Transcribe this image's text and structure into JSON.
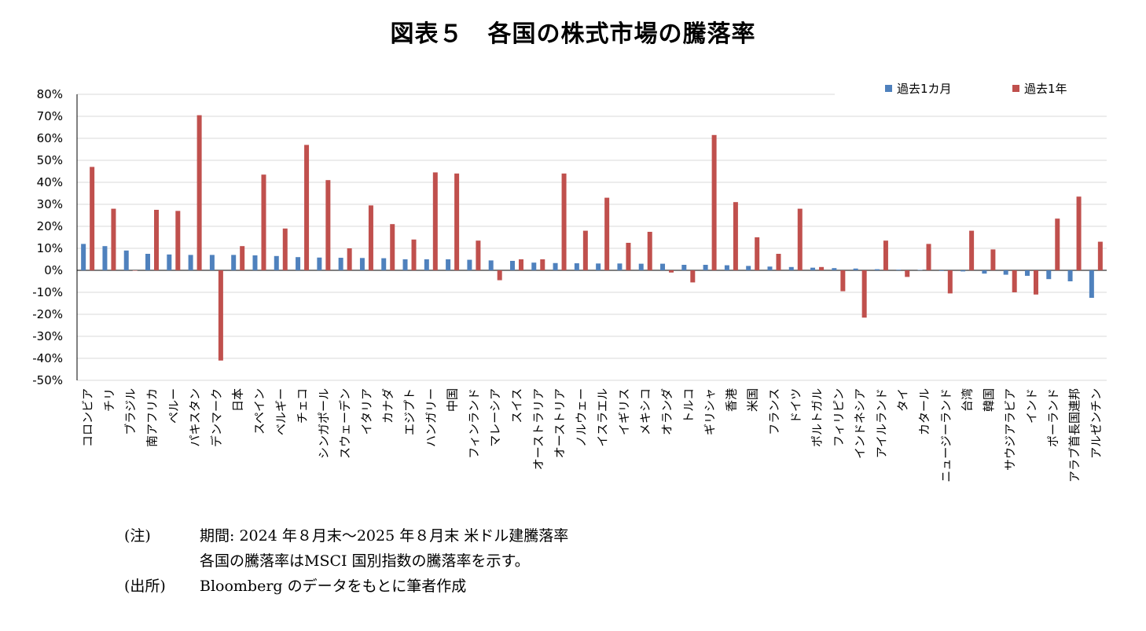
{
  "title": "図表５　各国の株式市場の騰落率",
  "colors": {
    "one_month": "#4F81BD",
    "one_year": "#C0504D",
    "grid": "#D9D9D9",
    "axis": "#000000"
  },
  "chart_data": {
    "type": "bar",
    "title": "図表５　各国の株式市場の騰落率",
    "ylim": [
      -50,
      80
    ],
    "yticks": [
      "80%",
      "70%",
      "60%",
      "50%",
      "40%",
      "30%",
      "20%",
      "10%",
      "0%",
      "-10%",
      "-20%",
      "-30%",
      "-40%",
      "-50%"
    ],
    "grid": true,
    "legend_position": "top-right",
    "categories": [
      "コロンビア",
      "チリ",
      "ブラジル",
      "南アフリカ",
      "ペルー",
      "パキスタン",
      "デンマーク",
      "日本",
      "スペイン",
      "ベルギー",
      "チェコ",
      "シンガポール",
      "スウェーデン",
      "イタリア",
      "カナダ",
      "エジプト",
      "ハンガリー",
      "中国",
      "フィンランド",
      "マレーシア",
      "スイス",
      "オーストラリア",
      "オーストリア",
      "ノルウェー",
      "イスラエル",
      "イギリス",
      "メキシコ",
      "オランダ",
      "トルコ",
      "ギリシャ",
      "香港",
      "米国",
      "フランス",
      "ドイツ",
      "ポルトガル",
      "フィリピン",
      "インドネシア",
      "アイルランド",
      "タイ",
      "カタール",
      "ニュージーランド",
      "台湾",
      "韓国",
      "サウジアラビア",
      "インド",
      "ポーランド",
      "アラブ首長国連邦",
      "アルゼンチン"
    ],
    "series": [
      {
        "name": "過去1カ月",
        "values": [
          12,
          11,
          9,
          7.5,
          7.2,
          7,
          7,
          7,
          6.8,
          6.5,
          6,
          5.8,
          5.7,
          5.6,
          5.5,
          5,
          5,
          5,
          4.8,
          4.5,
          4.3,
          3.5,
          3.3,
          3.2,
          3.1,
          3.1,
          3,
          3,
          2.5,
          2.5,
          2.3,
          2,
          1.7,
          1.5,
          1.2,
          1,
          0.8,
          0.5,
          0.3,
          0.2,
          -0.3,
          -0.5,
          -1.5,
          -2,
          -2.5,
          -4,
          -5,
          -12.5
        ]
      },
      {
        "name": "過去1年",
        "values": [
          47,
          28,
          0,
          27.5,
          27,
          70.5,
          -41,
          11,
          43.5,
          19,
          57,
          41,
          10,
          29.5,
          21,
          14,
          44.5,
          44,
          13.5,
          -4.5,
          5,
          5,
          44,
          18,
          33,
          12.5,
          17.5,
          -1,
          -5.5,
          61.5,
          31,
          15,
          7.5,
          28,
          1.5,
          -9.5,
          -21.5,
          13.5,
          -3,
          12,
          -10.5,
          18,
          9.5,
          -10,
          -11,
          23.5,
          33.5,
          13
        ]
      }
    ]
  },
  "notes": [
    {
      "key": "(注)",
      "text": "期間: 2024 年８月末～2025 年８月末 米ドル建騰落率"
    },
    {
      "key": "",
      "text": "各国の騰落率はMSCI 国別指数の騰落率を示す。"
    },
    {
      "key": "(出所)",
      "text": "Bloomberg のデータをもとに筆者作成"
    }
  ]
}
